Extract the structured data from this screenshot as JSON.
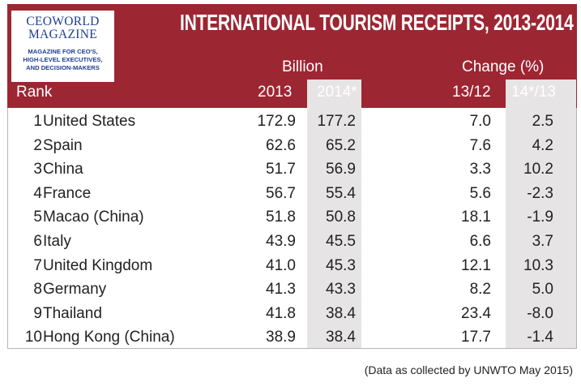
{
  "logo": {
    "title_line1": "CEOWORLD",
    "title_line2": "MAGAZINE",
    "sub_line1": "MAGAZINE FOR CEO'S,",
    "sub_line2": "HIGH-LEVEL EXECUTIVES,",
    "sub_line3": "AND DECISION-MAKERS"
  },
  "colors": {
    "header_bg": "#9d2633",
    "logo_text": "#1f3e8e",
    "highlight": "#e6e4e4"
  },
  "chart_data": {
    "type": "table",
    "title": "INTERNATIONAL TOURISM RECEIPTS, 2013-2014",
    "group_labels": {
      "billion": "Billion",
      "change": "Change (%)"
    },
    "columns": {
      "rank": "Rank",
      "y2013": "2013",
      "y2014": "2014*",
      "c1312": "13/12",
      "c1413": "14*/13"
    },
    "rows": [
      {
        "rank": "1",
        "country": "United States",
        "y2013": "172.9",
        "y2014": "177.2",
        "c1312": "7.0",
        "c1413": "2.5"
      },
      {
        "rank": "2",
        "country": "Spain",
        "y2013": "62.6",
        "y2014": "65.2",
        "c1312": "7.6",
        "c1413": "4.2"
      },
      {
        "rank": "3",
        "country": "China",
        "y2013": "51.7",
        "y2014": "56.9",
        "c1312": "3.3",
        "c1413": "10.2"
      },
      {
        "rank": "4",
        "country": "France",
        "y2013": "56.7",
        "y2014": "55.4",
        "c1312": "5.6",
        "c1413": "-2.3"
      },
      {
        "rank": "5",
        "country": "Macao (China)",
        "y2013": "51.8",
        "y2014": "50.8",
        "c1312": "18.1",
        "c1413": "-1.9"
      },
      {
        "rank": "6",
        "country": "Italy",
        "y2013": "43.9",
        "y2014": "45.5",
        "c1312": "6.6",
        "c1413": "3.7"
      },
      {
        "rank": "7",
        "country": "United Kingdom",
        "y2013": "41.0",
        "y2014": "45.3",
        "c1312": "12.1",
        "c1413": "10.3"
      },
      {
        "rank": "8",
        "country": "Germany",
        "y2013": "41.3",
        "y2014": "43.3",
        "c1312": "8.2",
        "c1413": "5.0"
      },
      {
        "rank": "9",
        "country": "Thailand",
        "y2013": "41.8",
        "y2014": "38.4",
        "c1312": "23.4",
        "c1413": "-8.0"
      },
      {
        "rank": "10",
        "country": "Hong Kong (China)",
        "y2013": "38.9",
        "y2014": "38.4",
        "c1312": "17.7",
        "c1413": "-1.4"
      }
    ],
    "footnote": "(Data as collected by UNWTO May 2015)"
  }
}
